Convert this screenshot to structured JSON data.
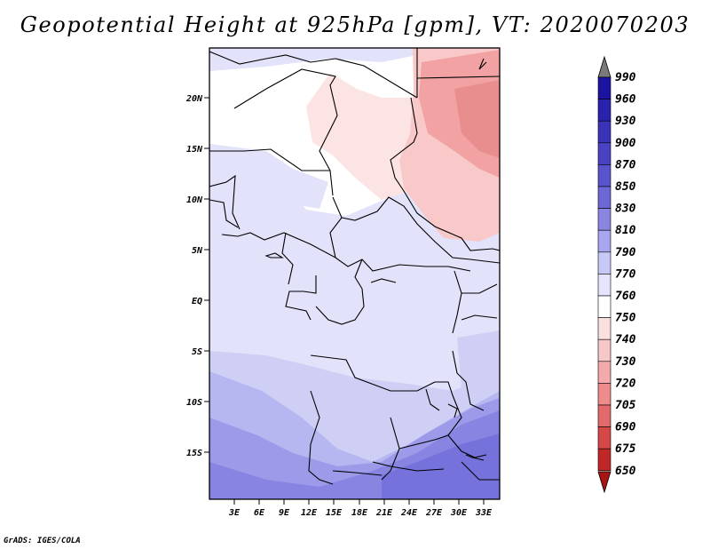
{
  "title": "Geopotential Height at 925hPa [gpm], VT: 2020070203",
  "footer": "GrADS: IGES/COLA",
  "axes": {
    "x_ticks": [
      "3E",
      "6E",
      "9E",
      "12E",
      "15E",
      "18E",
      "21E",
      "24E",
      "27E",
      "30E",
      "33E"
    ],
    "y_ticks": [
      "20N",
      "15N",
      "10N",
      "5N",
      "EQ",
      "5S",
      "10S",
      "15S"
    ]
  },
  "colorbar": {
    "labels": [
      "990",
      "960",
      "930",
      "900",
      "870",
      "850",
      "830",
      "810",
      "790",
      "770",
      "760",
      "750",
      "740",
      "730",
      "720",
      "705",
      "690",
      "675",
      "650"
    ],
    "colors": [
      "#7a7a7a",
      "#1c14a0",
      "#2a22ac",
      "#3a32b8",
      "#4a42c2",
      "#5a54cc",
      "#6e68d6",
      "#8a86e0",
      "#a8a6ec",
      "#c8c8f6",
      "#e4e4fc",
      "#ffffff",
      "#fbe0e0",
      "#f7c8c8",
      "#f3aaaa",
      "#ee8c8c",
      "#e26a6a",
      "#d44848",
      "#c02828",
      "#a81414"
    ]
  },
  "map_colors": {
    "c760": "#ffffff",
    "c770": "#e2e2fa",
    "c790": "#cfcff5",
    "c810": "#b6b6f0",
    "c830": "#9e9aea",
    "c850": "#8884e2",
    "c870": "#7672dc",
    "c750": "#fde4e4",
    "c740": "#f9c9c9",
    "c730": "#f2a2a2",
    "c720": "#e88e8e"
  }
}
